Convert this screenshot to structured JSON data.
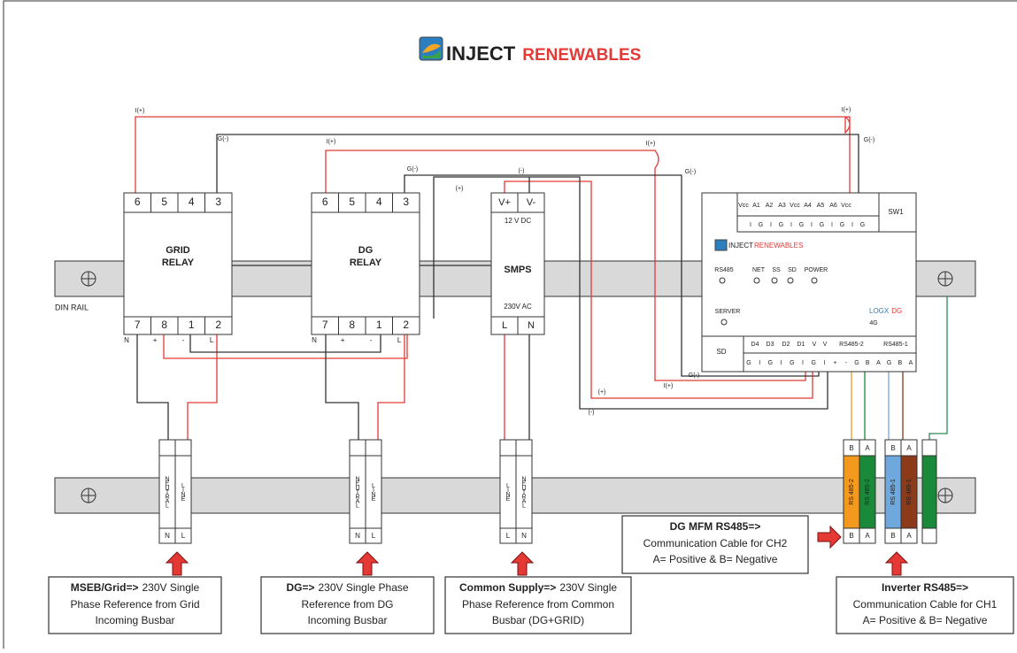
{
  "header": {
    "brand": "INJECT",
    "brand_accent": "RENEWABLES"
  },
  "din_rail_label": "DIN RAIL",
  "grid_relay": {
    "title": [
      "GRID",
      "RELAY"
    ],
    "top_terminals": [
      "6",
      "5",
      "4",
      "3"
    ],
    "bottom_terminals": [
      "7",
      "8",
      "1",
      "2"
    ],
    "bottom_marks": [
      "N",
      "+",
      "-",
      "L"
    ]
  },
  "dg_relay": {
    "title": [
      "DG",
      "RELAY"
    ],
    "top_terminals": [
      "6",
      "5",
      "4",
      "3"
    ],
    "bottom_terminals": [
      "7",
      "8",
      "1",
      "2"
    ],
    "bottom_marks": [
      "N",
      "+",
      "-",
      "L"
    ]
  },
  "smps": {
    "title": "SMPS",
    "top_terminals": [
      "V+",
      "V-"
    ],
    "bottom_terminals": [
      "L",
      "N"
    ],
    "output": "12 V DC",
    "input": "230V AC"
  },
  "wire_labels": [
    "I(+)",
    "G(-)",
    "I(+)",
    "G(-)",
    "(-)",
    "(+)",
    "I(+)",
    "I(+)",
    "G(-)",
    "G(-)",
    "(+)",
    "I(+)",
    "G(-)",
    "(-)"
  ],
  "logger": {
    "top_headers": [
      "Vcc",
      "A1",
      "A2",
      "A3",
      "Vcc",
      "A4",
      "A5",
      "A6",
      "Vcc"
    ],
    "switch": "SW1",
    "top_pins": [
      "I",
      "G",
      "I",
      "G",
      "I",
      "G",
      "I",
      "G",
      "I",
      "G",
      "I",
      "G"
    ],
    "brand": "INJECT",
    "brand_accent": "RENEWABLES",
    "leds": [
      "RS485",
      "NET",
      "SS",
      "SD",
      "POWER",
      "SERVER"
    ],
    "model": "LOGX",
    "model_accent": "DG",
    "network": "4G",
    "sd": "SD",
    "bottom_headers": [
      "D4",
      "D3",
      "D2",
      "D1",
      "V",
      "V",
      "RS485-2",
      "RS485-1"
    ],
    "bottom_pins": [
      "G",
      "I",
      "G",
      "I",
      "G",
      "I",
      "G",
      "I",
      "+",
      "-",
      "G",
      "B",
      "A",
      "G",
      "B",
      "A"
    ]
  },
  "terminal_blocks": [
    {
      "labels": [
        "NEUTRAL",
        "LINE"
      ],
      "bottom": [
        "N",
        "L"
      ]
    },
    {
      "labels": [
        "NEUTRAL",
        "LINE"
      ],
      "bottom": [
        "N",
        "L"
      ]
    },
    {
      "labels": [
        "LINE",
        "NEUTRAL"
      ],
      "bottom": [
        "L",
        "N"
      ]
    },
    {
      "top": [
        "B",
        "A"
      ],
      "labels": [
        "RS 485-2",
        "RS 485-2"
      ],
      "bottom": [
        "B",
        "A"
      ]
    },
    {
      "top": [
        "B",
        "A"
      ],
      "labels": [
        "RS 485-1",
        "RS 485-1"
      ],
      "bottom": [
        "B",
        "A"
      ]
    }
  ],
  "callouts": [
    {
      "bold": "MSEB/Grid=>",
      "lines": [
        "230V Single",
        "Phase Reference from Grid",
        "Incoming Busbar"
      ]
    },
    {
      "bold": "DG=>",
      "lines": [
        "230V Single Phase",
        "Reference from DG",
        "Incoming Busbar"
      ]
    },
    {
      "bold": "Common Supply=>",
      "lines": [
        "230V Single",
        "Phase Reference from Common",
        "Busbar (DG+GRID)"
      ]
    },
    {
      "bold": "DG MFM RS485=>",
      "lines": [
        "Communication Cable for CH2",
        "A= Positive & B= Negative"
      ]
    },
    {
      "bold": "Inverter RS485=>",
      "lines": [
        "Communication Cable for CH1",
        "A= Positive & B= Negative"
      ]
    }
  ]
}
